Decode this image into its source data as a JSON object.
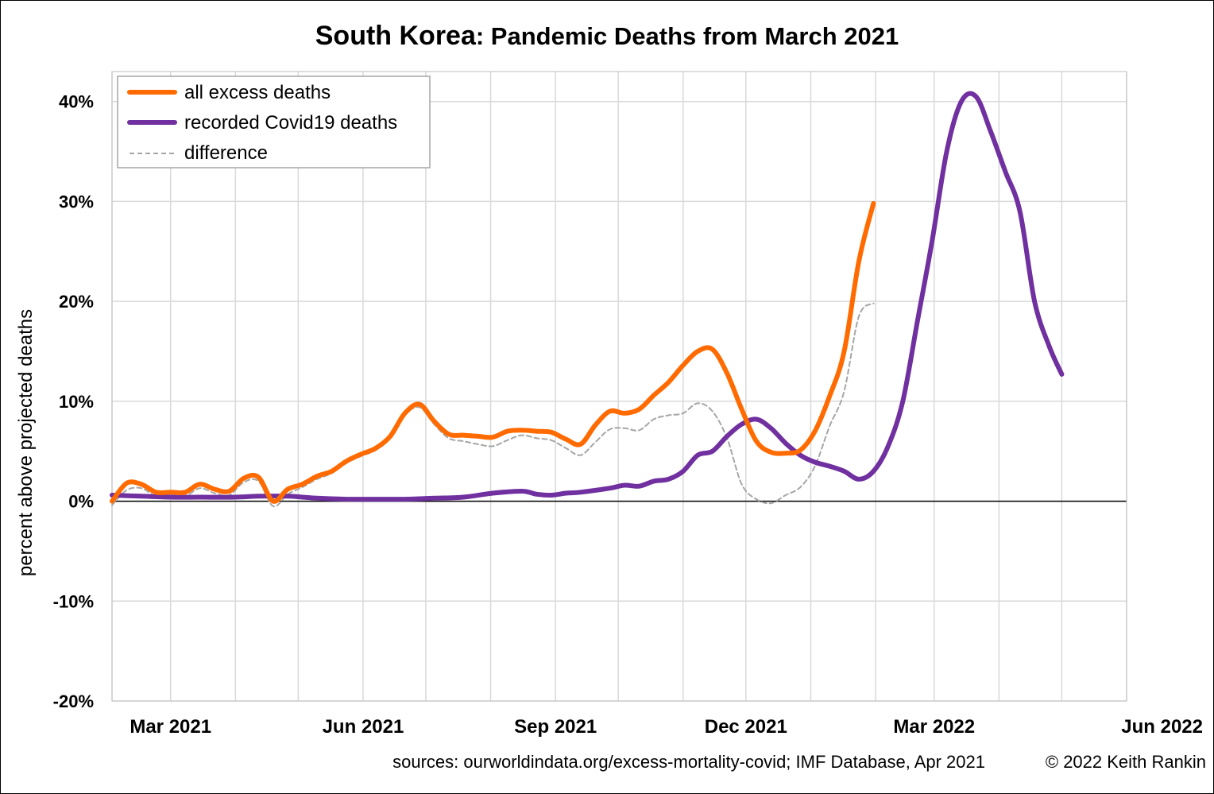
{
  "chart_data": {
    "type": "line",
    "title_bold": "South Korea",
    "title_rest": ": Pandemic Deaths from March 2021",
    "ylabel": "percent above projected deaths",
    "ylim": [
      -20,
      43
    ],
    "yticks": [
      -20,
      -10,
      0,
      10,
      20,
      30,
      40
    ],
    "ytick_labels": [
      "-20%",
      "-10%",
      "0%",
      "10%",
      "20%",
      "30%",
      "40%"
    ],
    "xlim": [
      "2021-02-01",
      "2022-06-01"
    ],
    "xticks": [
      "2021-03-01",
      "2021-06-01",
      "2021-09-01",
      "2021-12-01",
      "2022-03-01",
      "2022-06-01"
    ],
    "xtick_labels": [
      "Mar 2021",
      "Jun 2021",
      "Sep 2021",
      "Dec 2021",
      "Mar 2022",
      "Jun 2022"
    ],
    "grid": true,
    "legend_position": "top-left",
    "series": [
      {
        "name": "all excess deaths",
        "color": "#FF6B00",
        "style": "solid",
        "points": [
          [
            "2021-02-01",
            0.0
          ],
          [
            "2021-02-08",
            1.8
          ],
          [
            "2021-02-15",
            1.7
          ],
          [
            "2021-02-22",
            0.9
          ],
          [
            "2021-03-01",
            0.9
          ],
          [
            "2021-03-08",
            0.9
          ],
          [
            "2021-03-15",
            1.7
          ],
          [
            "2021-03-22",
            1.2
          ],
          [
            "2021-03-29",
            1.0
          ],
          [
            "2021-04-05",
            2.3
          ],
          [
            "2021-04-12",
            2.4
          ],
          [
            "2021-04-19",
            0.0
          ],
          [
            "2021-04-26",
            1.2
          ],
          [
            "2021-05-03",
            1.7
          ],
          [
            "2021-05-10",
            2.5
          ],
          [
            "2021-05-17",
            3.0
          ],
          [
            "2021-05-24",
            4.0
          ],
          [
            "2021-05-31",
            4.7
          ],
          [
            "2021-06-07",
            5.3
          ],
          [
            "2021-06-14",
            6.5
          ],
          [
            "2021-06-21",
            8.8
          ],
          [
            "2021-06-28",
            9.7
          ],
          [
            "2021-07-05",
            8.0
          ],
          [
            "2021-07-12",
            6.7
          ],
          [
            "2021-07-19",
            6.6
          ],
          [
            "2021-07-26",
            6.5
          ],
          [
            "2021-08-02",
            6.4
          ],
          [
            "2021-08-09",
            7.0
          ],
          [
            "2021-08-16",
            7.1
          ],
          [
            "2021-08-23",
            7.0
          ],
          [
            "2021-08-30",
            6.9
          ],
          [
            "2021-09-06",
            6.2
          ],
          [
            "2021-09-13",
            5.7
          ],
          [
            "2021-09-20",
            7.6
          ],
          [
            "2021-09-27",
            9.0
          ],
          [
            "2021-10-04",
            8.8
          ],
          [
            "2021-10-11",
            9.2
          ],
          [
            "2021-10-18",
            10.6
          ],
          [
            "2021-10-25",
            11.9
          ],
          [
            "2021-11-01",
            13.6
          ],
          [
            "2021-11-08",
            15.0
          ],
          [
            "2021-11-15",
            15.2
          ],
          [
            "2021-11-22",
            12.8
          ],
          [
            "2021-11-29",
            9.2
          ],
          [
            "2021-12-06",
            6.0
          ],
          [
            "2021-12-13",
            4.9
          ],
          [
            "2021-12-20",
            4.8
          ],
          [
            "2021-12-27",
            5.1
          ],
          [
            "2022-01-03",
            7.0
          ],
          [
            "2022-01-10",
            10.5
          ],
          [
            "2022-01-17",
            15.0
          ],
          [
            "2022-01-24",
            24.0
          ],
          [
            "2022-01-31",
            29.8
          ]
        ]
      },
      {
        "name": "recorded Covid19 deaths",
        "color": "#7030A0",
        "style": "solid",
        "points": [
          [
            "2021-02-01",
            0.6
          ],
          [
            "2021-02-15",
            0.5
          ],
          [
            "2021-03-01",
            0.4
          ],
          [
            "2021-03-15",
            0.4
          ],
          [
            "2021-04-01",
            0.4
          ],
          [
            "2021-04-12",
            0.5
          ],
          [
            "2021-04-26",
            0.5
          ],
          [
            "2021-05-10",
            0.3
          ],
          [
            "2021-05-24",
            0.2
          ],
          [
            "2021-06-07",
            0.2
          ],
          [
            "2021-06-21",
            0.2
          ],
          [
            "2021-07-05",
            0.3
          ],
          [
            "2021-07-19",
            0.4
          ],
          [
            "2021-08-02",
            0.8
          ],
          [
            "2021-08-16",
            1.0
          ],
          [
            "2021-08-23",
            0.7
          ],
          [
            "2021-08-30",
            0.6
          ],
          [
            "2021-09-06",
            0.8
          ],
          [
            "2021-09-13",
            0.9
          ],
          [
            "2021-09-27",
            1.3
          ],
          [
            "2021-10-04",
            1.6
          ],
          [
            "2021-10-11",
            1.5
          ],
          [
            "2021-10-18",
            2.0
          ],
          [
            "2021-10-25",
            2.2
          ],
          [
            "2021-11-01",
            3.0
          ],
          [
            "2021-11-08",
            4.6
          ],
          [
            "2021-11-15",
            5.0
          ],
          [
            "2021-11-22",
            6.5
          ],
          [
            "2021-11-29",
            7.7
          ],
          [
            "2021-12-06",
            8.2
          ],
          [
            "2021-12-13",
            7.3
          ],
          [
            "2021-12-20",
            5.8
          ],
          [
            "2021-12-27",
            4.6
          ],
          [
            "2022-01-03",
            3.9
          ],
          [
            "2022-01-10",
            3.5
          ],
          [
            "2022-01-17",
            3.0
          ],
          [
            "2022-01-24",
            2.2
          ],
          [
            "2022-01-31",
            3.0
          ],
          [
            "2022-02-07",
            5.5
          ],
          [
            "2022-02-14",
            10.0
          ],
          [
            "2022-02-21",
            18.0
          ],
          [
            "2022-02-28",
            26.0
          ],
          [
            "2022-03-07",
            35.0
          ],
          [
            "2022-03-14",
            40.0
          ],
          [
            "2022-03-21",
            40.5
          ],
          [
            "2022-03-28",
            37.0
          ],
          [
            "2022-04-04",
            33.0
          ],
          [
            "2022-04-11",
            29.0
          ],
          [
            "2022-04-18",
            20.0
          ],
          [
            "2022-04-25",
            15.5
          ],
          [
            "2022-05-01",
            12.7
          ]
        ]
      },
      {
        "name": "difference",
        "color": "#A6A6A6",
        "style": "dashed",
        "points": [
          [
            "2021-02-01",
            -0.4
          ],
          [
            "2021-02-08",
            1.1
          ],
          [
            "2021-02-15",
            1.3
          ],
          [
            "2021-02-22",
            0.5
          ],
          [
            "2021-03-01",
            0.5
          ],
          [
            "2021-03-08",
            0.5
          ],
          [
            "2021-03-15",
            1.3
          ],
          [
            "2021-03-22",
            0.8
          ],
          [
            "2021-03-29",
            0.6
          ],
          [
            "2021-04-05",
            1.9
          ],
          [
            "2021-04-12",
            2.0
          ],
          [
            "2021-04-19",
            -0.5
          ],
          [
            "2021-04-26",
            0.7
          ],
          [
            "2021-05-03",
            1.4
          ],
          [
            "2021-05-10",
            2.2
          ],
          [
            "2021-05-17",
            2.8
          ],
          [
            "2021-05-24",
            3.8
          ],
          [
            "2021-05-31",
            4.5
          ],
          [
            "2021-06-07",
            5.1
          ],
          [
            "2021-06-14",
            6.3
          ],
          [
            "2021-06-21",
            8.6
          ],
          [
            "2021-06-28",
            9.4
          ],
          [
            "2021-07-05",
            7.7
          ],
          [
            "2021-07-12",
            6.3
          ],
          [
            "2021-07-19",
            6.0
          ],
          [
            "2021-07-26",
            5.7
          ],
          [
            "2021-08-02",
            5.5
          ],
          [
            "2021-08-09",
            6.1
          ],
          [
            "2021-08-16",
            6.6
          ],
          [
            "2021-08-23",
            6.3
          ],
          [
            "2021-08-30",
            6.1
          ],
          [
            "2021-09-06",
            5.3
          ],
          [
            "2021-09-13",
            4.6
          ],
          [
            "2021-09-20",
            5.9
          ],
          [
            "2021-09-27",
            7.2
          ],
          [
            "2021-10-04",
            7.3
          ],
          [
            "2021-10-11",
            7.1
          ],
          [
            "2021-10-18",
            8.2
          ],
          [
            "2021-10-25",
            8.6
          ],
          [
            "2021-11-01",
            8.8
          ],
          [
            "2021-11-08",
            9.8
          ],
          [
            "2021-11-15",
            9.0
          ],
          [
            "2021-11-22",
            6.3
          ],
          [
            "2021-11-29",
            1.7
          ],
          [
            "2021-12-06",
            0.2
          ],
          [
            "2021-12-13",
            -0.2
          ],
          [
            "2021-12-20",
            0.6
          ],
          [
            "2021-12-27",
            1.4
          ],
          [
            "2022-01-03",
            3.5
          ],
          [
            "2022-01-10",
            7.5
          ],
          [
            "2022-01-17",
            11.0
          ],
          [
            "2022-01-24",
            18.5
          ],
          [
            "2022-01-31",
            19.8
          ]
        ]
      }
    ]
  },
  "footer": {
    "sources": "sources: ourworldindata.org/excess-mortality-covid; IMF Database, Apr 2021",
    "copyright": "© 2022 Keith Rankin"
  }
}
